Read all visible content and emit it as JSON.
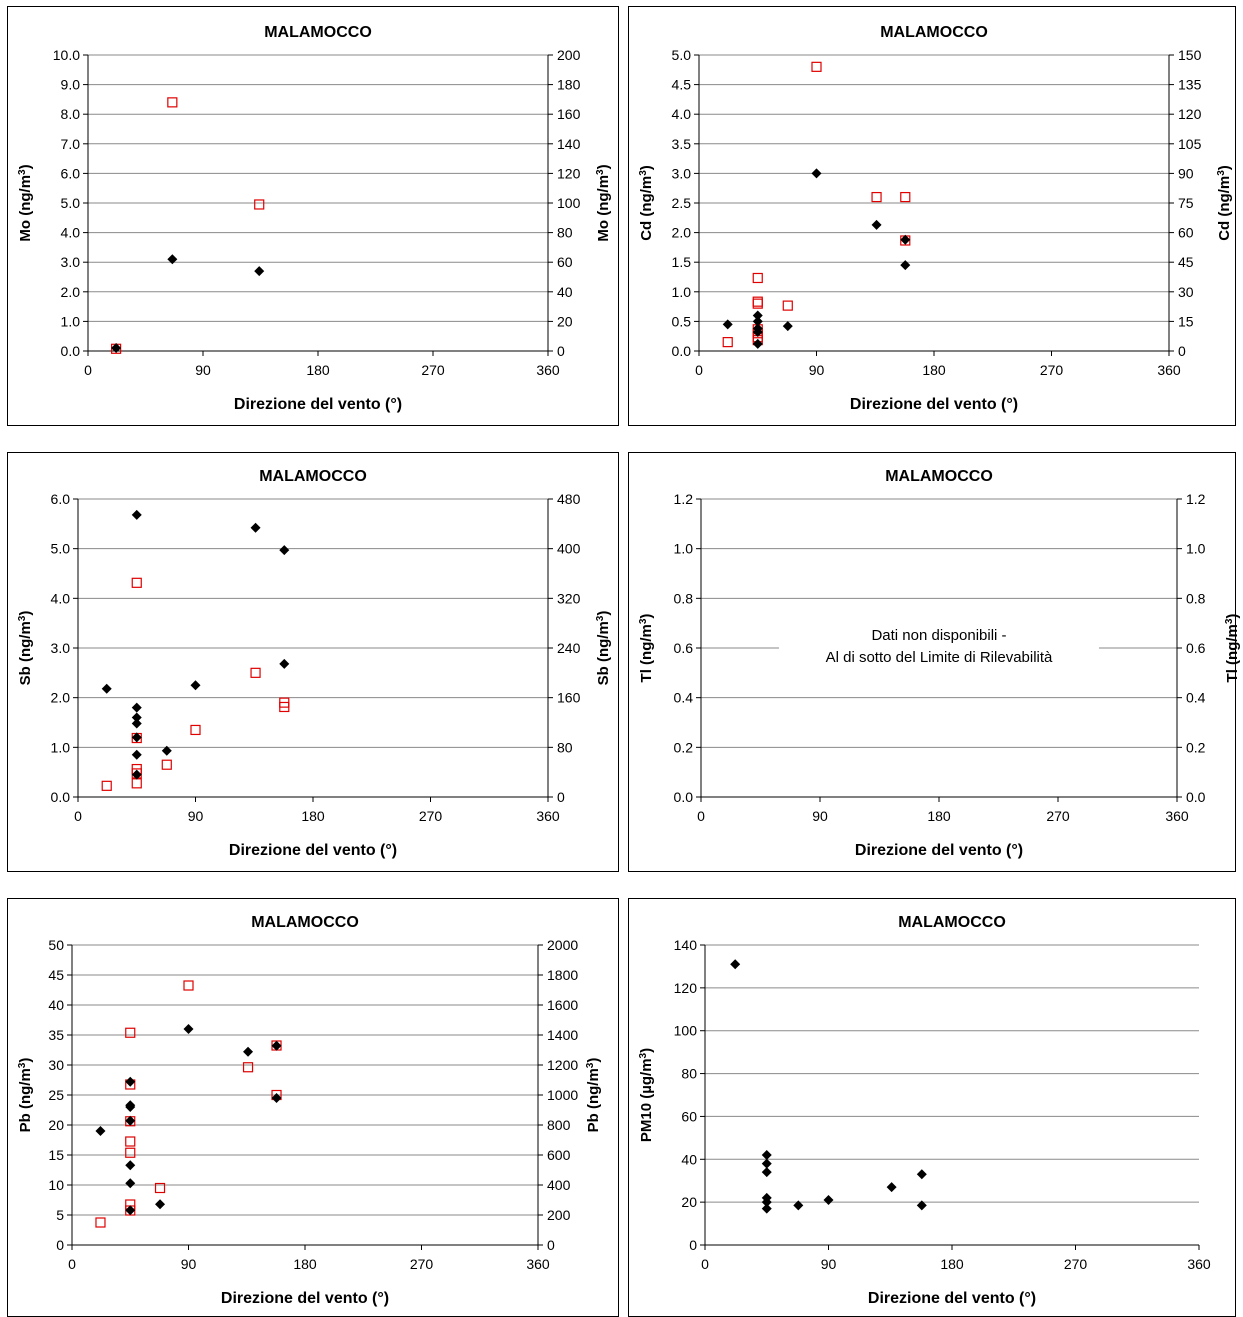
{
  "chart_data": [
    {
      "type": "scatter",
      "title": "MALAMOCCO",
      "xlabel": "Direzione del vento (°)",
      "ylabel_left": "Mo (ng/m3)",
      "ylabel_right": "Mo (ng/m3)",
      "xlim": [
        0,
        360
      ],
      "x_ticks": [
        "0",
        "90",
        "180",
        "270",
        "360"
      ],
      "ylim_left": [
        0,
        10
      ],
      "ylim_right": [
        0,
        200
      ],
      "y_ticks_left": [
        "0.0",
        "1.0",
        "2.0",
        "3.0",
        "4.0",
        "5.0",
        "6.0",
        "7.0",
        "8.0",
        "9.0",
        "10.0"
      ],
      "y_ticks_right": [
        "0",
        "20",
        "40",
        "60",
        "80",
        "100",
        "120",
        "140",
        "160",
        "180",
        "200"
      ],
      "grid": true,
      "series": [
        {
          "marker": "filled-diamond",
          "axis": "left",
          "color": "#000000",
          "points": [
            [
              22,
              0.1
            ],
            [
              66,
              3.1
            ],
            [
              134,
              2.7
            ]
          ]
        },
        {
          "marker": "open-square",
          "axis": "right",
          "color": "#e00000",
          "points": [
            [
              22,
              1.5
            ],
            [
              66,
              168
            ],
            [
              134,
              99
            ]
          ]
        }
      ]
    },
    {
      "type": "scatter",
      "title": "MALAMOCCO",
      "xlabel": "Direzione del vento (°)",
      "ylabel_left": "Cd (ng/m3)",
      "ylabel_right": "Cd (ng/m3)",
      "xlim": [
        0,
        360
      ],
      "x_ticks": [
        "0",
        "90",
        "180",
        "270",
        "360"
      ],
      "ylim_left": [
        0,
        5
      ],
      "ylim_right": [
        0,
        150
      ],
      "y_ticks_left": [
        "0.0",
        "0.5",
        "1.0",
        "1.5",
        "2.0",
        "2.5",
        "3.0",
        "3.5",
        "4.0",
        "4.5",
        "5.0"
      ],
      "y_ticks_right": [
        "0",
        "15",
        "30",
        "45",
        "60",
        "75",
        "90",
        "105",
        "120",
        "135",
        "150"
      ],
      "grid": true,
      "series": [
        {
          "marker": "filled-diamond",
          "axis": "left",
          "color": "#000000",
          "points": [
            [
              22,
              0.45
            ],
            [
              45,
              0.6
            ],
            [
              45,
              0.5
            ],
            [
              45,
              0.38
            ],
            [
              45,
              0.32
            ],
            [
              45,
              0.12
            ],
            [
              68,
              0.42
            ],
            [
              90,
              3.0
            ],
            [
              136,
              2.13
            ],
            [
              158,
              1.88
            ],
            [
              158,
              1.45
            ]
          ]
        },
        {
          "marker": "open-square",
          "axis": "right",
          "color": "#e00000",
          "points": [
            [
              22,
              4.5
            ],
            [
              45,
              37
            ],
            [
              45,
              25
            ],
            [
              45,
              24
            ],
            [
              45,
              11
            ],
            [
              45,
              9
            ],
            [
              45,
              7
            ],
            [
              45,
              5.5
            ],
            [
              68,
              23
            ],
            [
              90,
              144
            ],
            [
              136,
              78
            ],
            [
              158,
              78
            ],
            [
              158,
              56
            ]
          ]
        }
      ]
    },
    {
      "type": "scatter",
      "title": "MALAMOCCO",
      "xlabel": "Direzione del vento (°)",
      "ylabel_left": "Sb (ng/m3)",
      "ylabel_right": "Sb (ng/m3)",
      "xlim": [
        0,
        360
      ],
      "x_ticks": [
        "0",
        "90",
        "180",
        "270",
        "360"
      ],
      "ylim_left": [
        0,
        6
      ],
      "ylim_right": [
        0,
        480
      ],
      "y_ticks_left": [
        "0.0",
        "1.0",
        "2.0",
        "3.0",
        "4.0",
        "5.0",
        "6.0"
      ],
      "y_ticks_right": [
        "0",
        "80",
        "160",
        "240",
        "320",
        "400",
        "480"
      ],
      "grid": true,
      "series": [
        {
          "marker": "filled-diamond",
          "axis": "left",
          "color": "#000000",
          "points": [
            [
              22,
              2.18
            ],
            [
              45,
              5.68
            ],
            [
              45,
              1.8
            ],
            [
              45,
              1.6
            ],
            [
              45,
              1.48
            ],
            [
              45,
              1.2
            ],
            [
              45,
              0.85
            ],
            [
              45,
              0.45
            ],
            [
              68,
              0.93
            ],
            [
              90,
              2.25
            ],
            [
              136,
              5.42
            ],
            [
              158,
              4.97
            ],
            [
              158,
              2.68
            ]
          ]
        },
        {
          "marker": "open-square",
          "axis": "right",
          "color": "#e00000",
          "points": [
            [
              22,
              18
            ],
            [
              45,
              345
            ],
            [
              45,
              95
            ],
            [
              45,
              45
            ],
            [
              45,
              38
            ],
            [
              45,
              22
            ],
            [
              68,
              52
            ],
            [
              90,
              108
            ],
            [
              136,
              200
            ],
            [
              158,
              152
            ],
            [
              158,
              145
            ]
          ]
        }
      ]
    },
    {
      "type": "scatter",
      "title": "MALAMOCCO",
      "xlabel": "Direzione del vento (°)",
      "ylabel_left": "Tl (ng/m3)",
      "ylabel_right": "Tl (ng/m3)",
      "xlim": [
        0,
        360
      ],
      "x_ticks": [
        "0",
        "90",
        "180",
        "270",
        "360"
      ],
      "ylim_left": [
        0,
        1.2
      ],
      "ylim_right": [
        0,
        1.2
      ],
      "y_ticks_left": [
        "0.0",
        "0.2",
        "0.4",
        "0.6",
        "0.8",
        "1.0",
        "1.2"
      ],
      "y_ticks_right": [
        "0.0",
        "0.2",
        "0.4",
        "0.6",
        "0.8",
        "1.0",
        "1.2"
      ],
      "grid": true,
      "annotation": [
        "Dati non disponibili -",
        "Al di sotto del Limite di Rilevabilità"
      ],
      "series": []
    },
    {
      "type": "scatter",
      "title": "MALAMOCCO",
      "xlabel": "Direzione del vento (°)",
      "ylabel_left": "Pb (ng/m3)",
      "ylabel_right": "Pb (ng/m3)",
      "xlim": [
        0,
        360
      ],
      "x_ticks": [
        "0",
        "90",
        "180",
        "270",
        "360"
      ],
      "ylim_left": [
        0,
        50
      ],
      "ylim_right": [
        0,
        2000
      ],
      "y_ticks_left": [
        "0",
        "5",
        "10",
        "15",
        "20",
        "25",
        "30",
        "35",
        "40",
        "45",
        "50"
      ],
      "y_ticks_right": [
        "0",
        "200",
        "400",
        "600",
        "800",
        "1000",
        "1200",
        "1400",
        "1600",
        "1800",
        "2000"
      ],
      "grid": true,
      "series": [
        {
          "marker": "filled-diamond",
          "axis": "left",
          "color": "#000000",
          "points": [
            [
              22,
              19.0
            ],
            [
              45,
              27.2
            ],
            [
              45,
              23.3
            ],
            [
              45,
              23.0
            ],
            [
              45,
              20.7
            ],
            [
              45,
              13.3
            ],
            [
              45,
              10.3
            ],
            [
              45,
              5.8
            ],
            [
              68,
              6.8
            ],
            [
              90,
              36.0
            ],
            [
              136,
              32.2
            ],
            [
              158,
              33.2
            ],
            [
              158,
              24.5
            ]
          ]
        },
        {
          "marker": "open-square",
          "axis": "right",
          "color": "#e00000",
          "points": [
            [
              22,
              150
            ],
            [
              45,
              1415
            ],
            [
              45,
              1070
            ],
            [
              45,
              825
            ],
            [
              45,
              690
            ],
            [
              45,
              615
            ],
            [
              45,
              270
            ],
            [
              45,
              230
            ],
            [
              68,
              380
            ],
            [
              90,
              1730
            ],
            [
              136,
              1185
            ],
            [
              158,
              1330
            ],
            [
              158,
              1000
            ]
          ]
        }
      ]
    },
    {
      "type": "scatter",
      "title": "MALAMOCCO",
      "xlabel": "Direzione del vento (°)",
      "ylabel_left": "PM10 (µg/m3)",
      "xlim": [
        0,
        360
      ],
      "x_ticks": [
        "0",
        "90",
        "180",
        "270",
        "360"
      ],
      "ylim_left": [
        0,
        140
      ],
      "y_ticks_left": [
        "0",
        "20",
        "40",
        "60",
        "80",
        "100",
        "120",
        "140"
      ],
      "grid": true,
      "series": [
        {
          "marker": "filled-diamond",
          "axis": "left",
          "color": "#000000",
          "points": [
            [
              22,
              131
            ],
            [
              45,
              42
            ],
            [
              45,
              38
            ],
            [
              45,
              34
            ],
            [
              45,
              22
            ],
            [
              45,
              20
            ],
            [
              45,
              17
            ],
            [
              68,
              18.5
            ],
            [
              90,
              21
            ],
            [
              136,
              27
            ],
            [
              158,
              33
            ],
            [
              158,
              18.5
            ]
          ]
        }
      ]
    }
  ]
}
